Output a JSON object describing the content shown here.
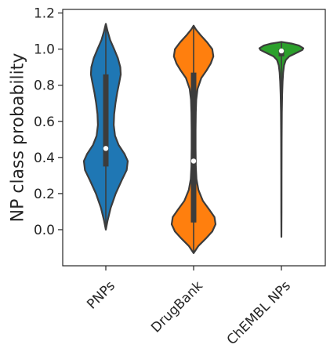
{
  "chart_data": {
    "type": "violin",
    "ylabel": "NP class probability",
    "xlabel": "",
    "ylim": [
      -0.2,
      1.22
    ],
    "yticks": [
      "0.0",
      "0.2",
      "0.4",
      "0.6",
      "0.8",
      "1.0",
      "1.2"
    ],
    "categories": [
      "PNPs",
      "DrugBank",
      "ChEMBL NPs"
    ],
    "grid": false,
    "series": [
      {
        "category": "PNPs",
        "color": "#1f77b4",
        "median": 0.45,
        "q1": 0.35,
        "q3": 0.86,
        "min": 0.0,
        "max": 1.14,
        "density": [
          [
            0.0,
            0.0
          ],
          [
            0.05,
            0.08
          ],
          [
            0.12,
            0.22
          ],
          [
            0.2,
            0.45
          ],
          [
            0.28,
            0.75
          ],
          [
            0.33,
            0.95
          ],
          [
            0.38,
            1.0
          ],
          [
            0.42,
            0.85
          ],
          [
            0.47,
            0.58
          ],
          [
            0.52,
            0.42
          ],
          [
            0.58,
            0.36
          ],
          [
            0.64,
            0.38
          ],
          [
            0.7,
            0.44
          ],
          [
            0.76,
            0.52
          ],
          [
            0.82,
            0.62
          ],
          [
            0.86,
            0.68
          ],
          [
            0.9,
            0.66
          ],
          [
            0.95,
            0.55
          ],
          [
            1.0,
            0.38
          ],
          [
            1.05,
            0.2
          ],
          [
            1.1,
            0.08
          ],
          [
            1.14,
            0.0
          ]
        ]
      },
      {
        "category": "DrugBank",
        "color": "#ff7f0e",
        "median": 0.38,
        "q1": 0.04,
        "q3": 0.87,
        "min": -0.13,
        "max": 1.13,
        "density": [
          [
            -0.13,
            0.0
          ],
          [
            -0.09,
            0.22
          ],
          [
            -0.05,
            0.55
          ],
          [
            -0.01,
            0.85
          ],
          [
            0.03,
            1.0
          ],
          [
            0.07,
            0.95
          ],
          [
            0.11,
            0.72
          ],
          [
            0.16,
            0.42
          ],
          [
            0.22,
            0.22
          ],
          [
            0.28,
            0.13
          ],
          [
            0.35,
            0.1
          ],
          [
            0.45,
            0.09
          ],
          [
            0.55,
            0.09
          ],
          [
            0.65,
            0.1
          ],
          [
            0.72,
            0.12
          ],
          [
            0.78,
            0.18
          ],
          [
            0.84,
            0.35
          ],
          [
            0.88,
            0.58
          ],
          [
            0.92,
            0.78
          ],
          [
            0.96,
            0.9
          ],
          [
            1.0,
            0.85
          ],
          [
            1.04,
            0.6
          ],
          [
            1.08,
            0.3
          ],
          [
            1.11,
            0.1
          ],
          [
            1.13,
            0.0
          ]
        ]
      },
      {
        "category": "ChEMBL NPs",
        "color": "#2ca02c",
        "median": 0.99,
        "q1": 0.96,
        "q3": 1.0,
        "min": -0.04,
        "max": 1.04,
        "density": [
          [
            -0.04,
            0.0
          ],
          [
            0.1,
            0.006
          ],
          [
            0.3,
            0.008
          ],
          [
            0.5,
            0.012
          ],
          [
            0.65,
            0.02
          ],
          [
            0.75,
            0.035
          ],
          [
            0.82,
            0.055
          ],
          [
            0.87,
            0.08
          ],
          [
            0.91,
            0.12
          ],
          [
            0.94,
            0.2
          ],
          [
            0.96,
            0.36
          ],
          [
            0.98,
            0.7
          ],
          [
            0.995,
            0.95
          ],
          [
            1.005,
            1.0
          ],
          [
            1.02,
            0.8
          ],
          [
            1.03,
            0.5
          ],
          [
            1.04,
            0.0
          ]
        ]
      }
    ]
  }
}
